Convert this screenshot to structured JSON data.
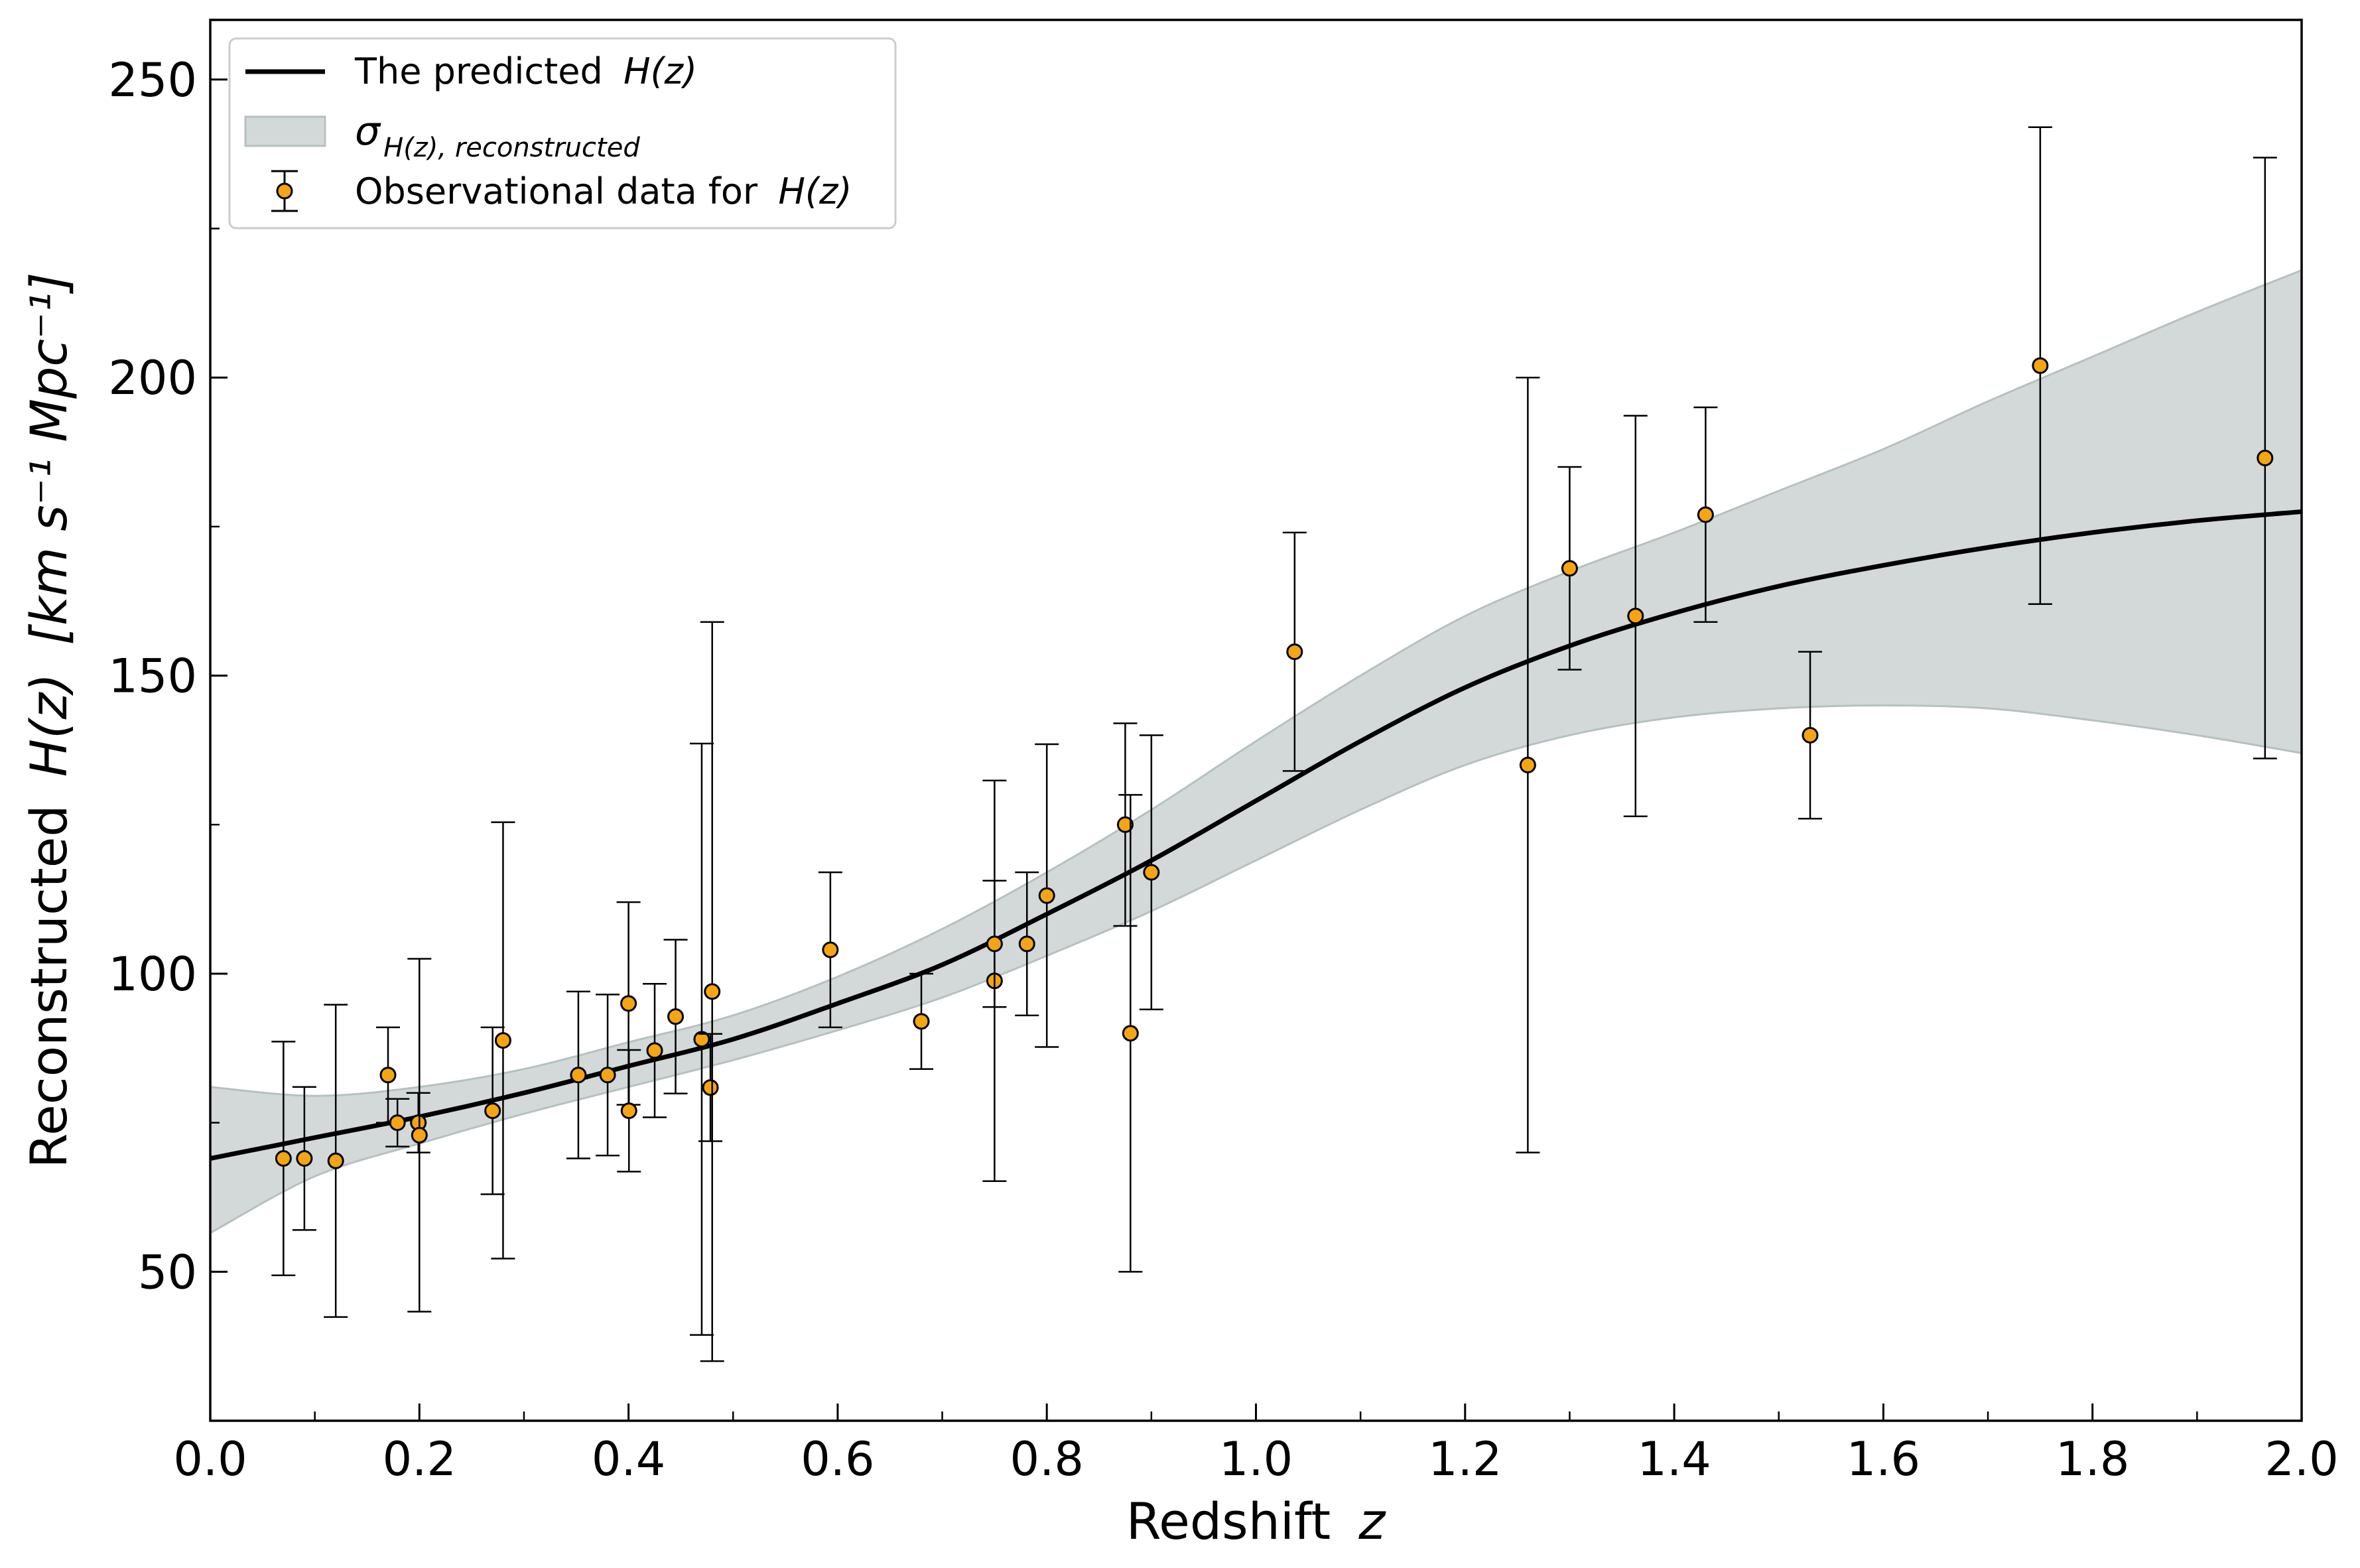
{
  "chart_data": {
    "type": "line",
    "title": "",
    "xlabel": "Redshift",
    "xlabel_symbol": "z",
    "ylabel_prefix": "Reconstructed",
    "ylabel_symbol": "H(z)",
    "ylabel_units": "[km s⁻¹ Mpc⁻¹]",
    "xlim": [
      0.0,
      2.0
    ],
    "ylim": [
      25,
      260
    ],
    "xticks": [
      0.0,
      0.2,
      0.4,
      0.6,
      0.8,
      1.0,
      1.2,
      1.4,
      1.6,
      1.8,
      2.0
    ],
    "xtick_labels": [
      "0.0",
      "0.2",
      "0.4",
      "0.6",
      "0.8",
      "1.0",
      "1.2",
      "1.4",
      "1.6",
      "1.8",
      "2.0"
    ],
    "yticks": [
      50,
      100,
      150,
      200,
      250
    ],
    "ytick_labels": [
      "50",
      "100",
      "150",
      "200",
      "250"
    ],
    "legend_location": "top-left",
    "legend": {
      "predicted_prefix": "The predicted",
      "predicted_symbol": "H(z)",
      "band_symbol": "σ",
      "band_subscript": "H(z), reconstructed",
      "obs_prefix": "Observational data for",
      "obs_symbol": "H(z)"
    },
    "colors": {
      "line": "#000000",
      "band_fill": "#d3d9d9",
      "band_edge": "#b7c0c0",
      "marker_fill": "#f5a511",
      "marker_edge": "#000000"
    },
    "curve": {
      "name": "The predicted H(z)",
      "x": [
        0.0,
        0.1,
        0.2,
        0.3,
        0.4,
        0.5,
        0.6,
        0.7,
        0.8,
        0.9,
        1.0,
        1.1,
        1.2,
        1.3,
        1.4,
        1.5,
        1.6,
        1.7,
        1.8,
        1.9,
        2.0
      ],
      "y": [
        69,
        72.5,
        76,
        80,
        84.5,
        89,
        95,
        101.5,
        110,
        119,
        129,
        139,
        148,
        155,
        160.5,
        165,
        168.5,
        171.5,
        174,
        176,
        177.5
      ]
    },
    "band": {
      "name": "sigma H(z), reconstructed",
      "x": [
        0.0,
        0.1,
        0.2,
        0.3,
        0.4,
        0.5,
        0.6,
        0.7,
        0.8,
        0.9,
        1.0,
        1.1,
        1.2,
        1.3,
        1.4,
        1.5,
        1.6,
        1.7,
        1.8,
        1.9,
        2.0
      ],
      "lower": [
        56.5,
        66,
        71.5,
        76.5,
        81,
        85.5,
        90.5,
        96,
        103,
        110.5,
        119,
        127.5,
        135,
        140,
        143,
        144.5,
        145,
        144.5,
        142.5,
        140,
        137
      ],
      "upper": [
        81,
        79.5,
        81,
        84,
        88.5,
        93,
        99.5,
        107.5,
        117,
        127.5,
        139,
        150,
        160,
        167.5,
        174,
        181,
        188,
        196,
        203.5,
        211,
        218
      ]
    },
    "points": {
      "name": "Observational data for H(z)",
      "z": [
        0.07,
        0.09,
        0.12,
        0.17,
        0.179,
        0.199,
        0.2,
        0.27,
        0.28,
        0.352,
        0.38,
        0.4,
        0.4004,
        0.425,
        0.445,
        0.47,
        0.4783,
        0.48,
        0.593,
        0.68,
        0.75,
        0.75,
        0.781,
        0.8,
        0.875,
        0.88,
        0.9,
        1.037,
        1.26,
        1.3,
        1.363,
        1.43,
        1.53,
        1.75,
        1.965
      ],
      "H": [
        69,
        69,
        68.6,
        83,
        75,
        75,
        72.9,
        77,
        88.8,
        83,
        83,
        95,
        77,
        87.1,
        92.8,
        89,
        80.9,
        97,
        104,
        92,
        98.8,
        105,
        105,
        113.1,
        125,
        90,
        117,
        154,
        135,
        168,
        160,
        177,
        140,
        202,
        186.5
      ],
      "err": [
        19.6,
        12,
        26.2,
        8,
        4,
        5,
        29.6,
        14,
        36.6,
        14,
        13.5,
        17,
        10.2,
        11.2,
        12.9,
        49.6,
        9,
        62,
        13,
        8,
        33.6,
        10.6,
        12,
        25.4,
        17,
        40,
        23,
        20,
        65,
        17,
        33.6,
        18,
        14,
        40,
        50.4
      ]
    }
  }
}
